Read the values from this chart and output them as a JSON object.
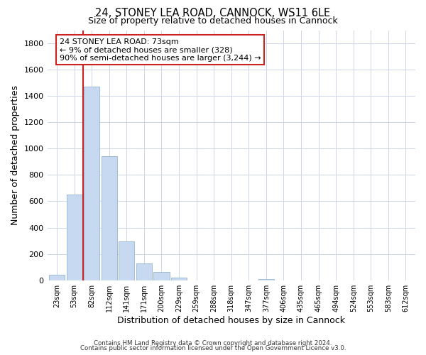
{
  "title": "24, STONEY LEA ROAD, CANNOCK, WS11 6LE",
  "subtitle": "Size of property relative to detached houses in Cannock",
  "xlabel": "Distribution of detached houses by size in Cannock",
  "ylabel": "Number of detached properties",
  "bar_labels": [
    "23sqm",
    "53sqm",
    "82sqm",
    "112sqm",
    "141sqm",
    "171sqm",
    "200sqm",
    "229sqm",
    "259sqm",
    "288sqm",
    "318sqm",
    "347sqm",
    "377sqm",
    "406sqm",
    "435sqm",
    "465sqm",
    "494sqm",
    "524sqm",
    "553sqm",
    "583sqm",
    "612sqm"
  ],
  "bar_values": [
    40,
    650,
    1470,
    940,
    295,
    130,
    65,
    20,
    0,
    0,
    0,
    0,
    10,
    0,
    0,
    0,
    0,
    0,
    0,
    0,
    0
  ],
  "bar_color": "#c7d9f0",
  "bar_edge_color": "#a0bcd8",
  "ylim": [
    0,
    1900
  ],
  "yticks": [
    0,
    200,
    400,
    600,
    800,
    1000,
    1200,
    1400,
    1600,
    1800
  ],
  "property_line_color": "#cc2222",
  "annotation_text": "24 STONEY LEA ROAD: 73sqm\n← 9% of detached houses are smaller (328)\n90% of semi-detached houses are larger (3,244) →",
  "annotation_box_color": "#ffffff",
  "annotation_box_edge": "#cc2222",
  "footer_line1": "Contains HM Land Registry data © Crown copyright and database right 2024.",
  "footer_line2": "Contains public sector information licensed under the Open Government Licence v3.0.",
  "background_color": "#ffffff",
  "grid_color": "#ccd6e8"
}
